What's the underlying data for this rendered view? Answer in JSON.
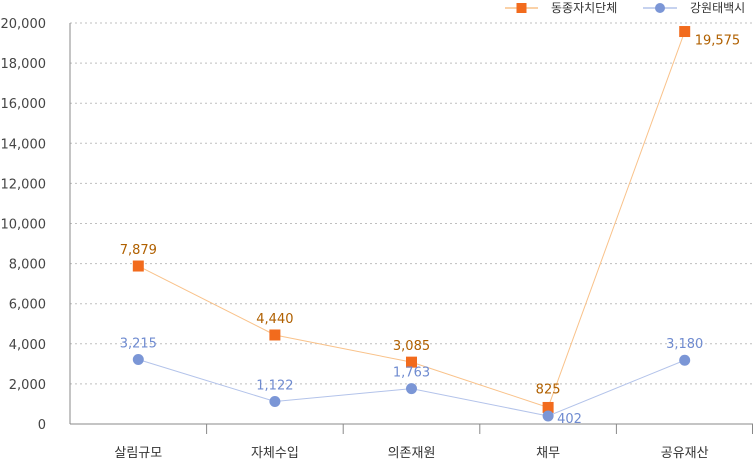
{
  "chart_data": {
    "type": "line",
    "categories": [
      "살림규모",
      "자체수입",
      "의존재원",
      "채무",
      "공유재산"
    ],
    "series": [
      {
        "name": "동종자치단체",
        "values": [
          7879,
          4440,
          3085,
          825,
          19575
        ],
        "labels": [
          "7,879",
          "4,440",
          "3,085",
          "825",
          "19,575"
        ],
        "color": "#f26b1d",
        "label_color": "#b06000",
        "line_color": "#f9c28a",
        "marker": "square"
      },
      {
        "name": "강원태백시",
        "values": [
          3215,
          1122,
          1763,
          402,
          3180
        ],
        "labels": [
          "3,215",
          "1,122",
          "1,763",
          "402",
          "3,180"
        ],
        "color": "#7b96d6",
        "label_color": "#6f8bd0",
        "line_color": "#b3c3ea",
        "marker": "circle"
      }
    ],
    "yticks": [
      "0",
      "2,000",
      "4,000",
      "6,000",
      "8,000",
      "10,000",
      "12,000",
      "14,000",
      "16,000",
      "18,000",
      "20,000"
    ],
    "ylim": [
      0,
      20000
    ],
    "grid": true,
    "legend_position": "top-right"
  }
}
